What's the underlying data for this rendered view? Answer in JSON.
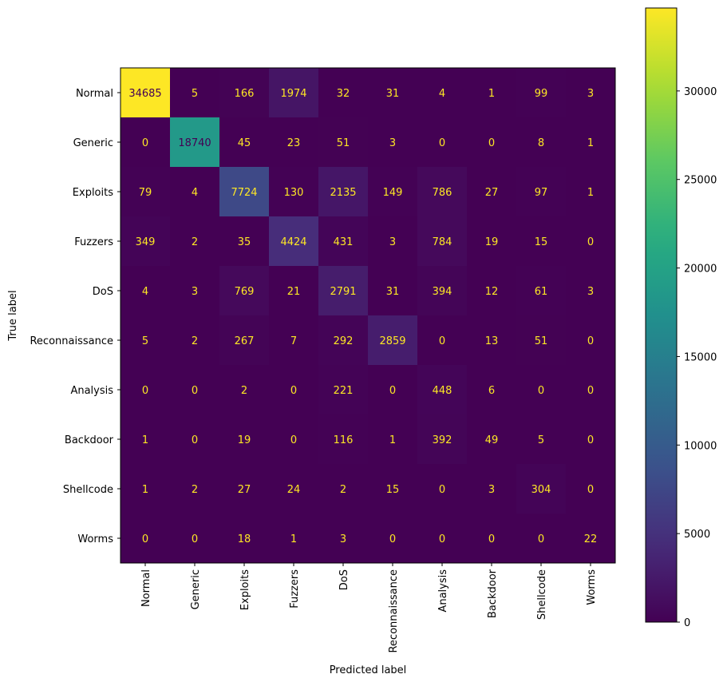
{
  "chart_data": {
    "type": "heatmap",
    "title": "",
    "xlabel": "Predicted label",
    "ylabel": "True label",
    "x_categories": [
      "Normal",
      "Generic",
      "Exploits",
      "Fuzzers",
      "DoS",
      "Reconnaissance",
      "Analysis",
      "Backdoor",
      "Shellcode",
      "Worms"
    ],
    "y_categories": [
      "Normal",
      "Generic",
      "Exploits",
      "Fuzzers",
      "DoS",
      "Reconnaissance",
      "Analysis",
      "Backdoor",
      "Shellcode",
      "Worms"
    ],
    "values": [
      [
        34685,
        5,
        166,
        1974,
        32,
        31,
        4,
        1,
        99,
        3
      ],
      [
        0,
        18740,
        45,
        23,
        51,
        3,
        0,
        0,
        8,
        1
      ],
      [
        79,
        4,
        7724,
        130,
        2135,
        149,
        786,
        27,
        97,
        1
      ],
      [
        349,
        2,
        35,
        4424,
        431,
        3,
        784,
        19,
        15,
        0
      ],
      [
        4,
        3,
        769,
        21,
        2791,
        31,
        394,
        12,
        61,
        3
      ],
      [
        5,
        2,
        267,
        7,
        292,
        2859,
        0,
        13,
        51,
        0
      ],
      [
        0,
        0,
        2,
        0,
        221,
        0,
        448,
        6,
        0,
        0
      ],
      [
        1,
        0,
        19,
        0,
        116,
        1,
        392,
        49,
        5,
        0
      ],
      [
        1,
        2,
        27,
        24,
        2,
        15,
        0,
        3,
        304,
        0
      ],
      [
        0,
        0,
        18,
        1,
        3,
        0,
        0,
        0,
        0,
        22
      ]
    ],
    "colormap": "viridis",
    "colorbar": {
      "range": [
        0,
        34685
      ],
      "ticks": [
        0,
        5000,
        10000,
        15000,
        20000,
        25000,
        30000
      ],
      "tick_labels": [
        "0",
        "5000",
        "10000",
        "15000",
        "20000",
        "25000",
        "30000"
      ]
    },
    "text_colors": {
      "low": "#fde725",
      "high": "#440154"
    },
    "grid": false
  }
}
